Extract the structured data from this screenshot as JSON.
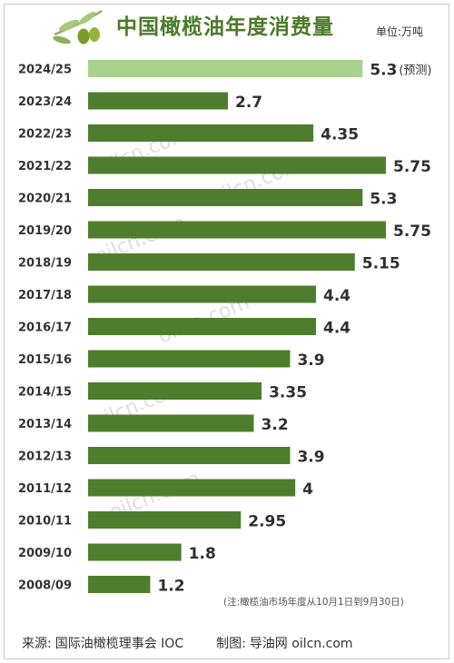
{
  "header": {
    "title": "中国橄榄油年度消费量",
    "unit": "单位:万吨"
  },
  "chart_data": {
    "type": "bar",
    "orientation": "horizontal",
    "title": "中国橄榄油年度消费量",
    "categories": [
      "2024/25",
      "2023/24",
      "2022/23",
      "2021/22",
      "2020/21",
      "2019/20",
      "2018/19",
      "2017/18",
      "2016/17",
      "2015/16",
      "2014/15",
      "2013/14",
      "2012/13",
      "2011/12",
      "2010/11",
      "2009/10",
      "2008/09"
    ],
    "values": [
      5.3,
      2.7,
      4.35,
      5.75,
      5.3,
      5.75,
      5.15,
      4.4,
      4.4,
      3.9,
      3.35,
      3.2,
      3.9,
      4,
      2.95,
      1.8,
      1.2
    ],
    "value_labels": [
      "5.3",
      "2.7",
      "4.35",
      "5.75",
      "5.3",
      "5.75",
      "5.15",
      "4.4",
      "4.4",
      "3.9",
      "3.35",
      "3.2",
      "3.9",
      "4",
      "2.95",
      "1.8",
      "1.2"
    ],
    "forecast_index": 0,
    "forecast_label": "(预测)",
    "unit": "万吨",
    "xlim": [
      0,
      5.75
    ],
    "grid": false,
    "colors": {
      "bar": "#4f7d2e",
      "forecast_bar": "#a9d18e",
      "label": "#2f2f2f"
    }
  },
  "watermark": "oilcn.com",
  "note": "(注:橄榄油市场年度从10月1日到9月30日)",
  "footer": {
    "source_label": "来源:",
    "source_value": "国际油橄榄理事会 IOC",
    "made_label": "制图:",
    "made_value": "导油网 oilcn.com"
  }
}
